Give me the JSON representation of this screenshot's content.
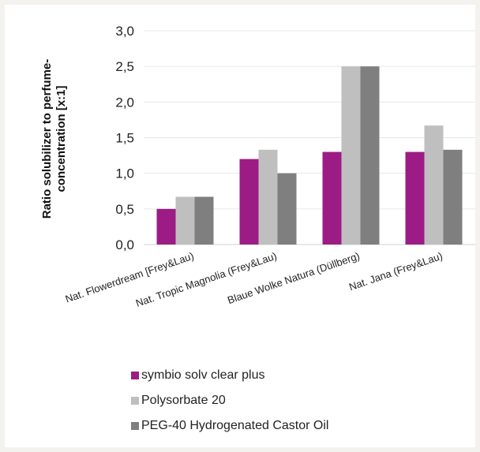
{
  "colors": {
    "background": "#ffffff",
    "gridline": "#e6e6e6"
  },
  "chart_data": {
    "type": "bar",
    "title": "",
    "xlabel": "",
    "ylabel_lines": [
      "Ratio solubilizer to perfume-",
      "concentration [x:1]"
    ],
    "ylim": [
      0,
      3
    ],
    "yticks": [
      "0,0",
      "0,5",
      "1,0",
      "1,5",
      "2,0",
      "2,5",
      "3,0"
    ],
    "grid": true,
    "legend_position": "bottom",
    "categories": [
      "Nat. Flowerdream [Frey&Lau)",
      "Nat. Tropic Magnolia (Frey&Lau)",
      "Blaue Wolke Natura (Düllberg)",
      "Nat. Jana (Frey&Lau)"
    ],
    "series": [
      {
        "name": "symbio solv clear plus",
        "color": "#9c1c86",
        "values": [
          0.5,
          1.2,
          1.3,
          1.3
        ]
      },
      {
        "name": "Polysorbate 20",
        "color": "#bfbfbf",
        "values": [
          0.67,
          1.33,
          2.5,
          1.67
        ]
      },
      {
        "name": "PEG-40 Hydrogenated Castor Oil",
        "color": "#7f7f7f",
        "values": [
          0.67,
          1.0,
          2.5,
          1.33
        ]
      }
    ]
  }
}
